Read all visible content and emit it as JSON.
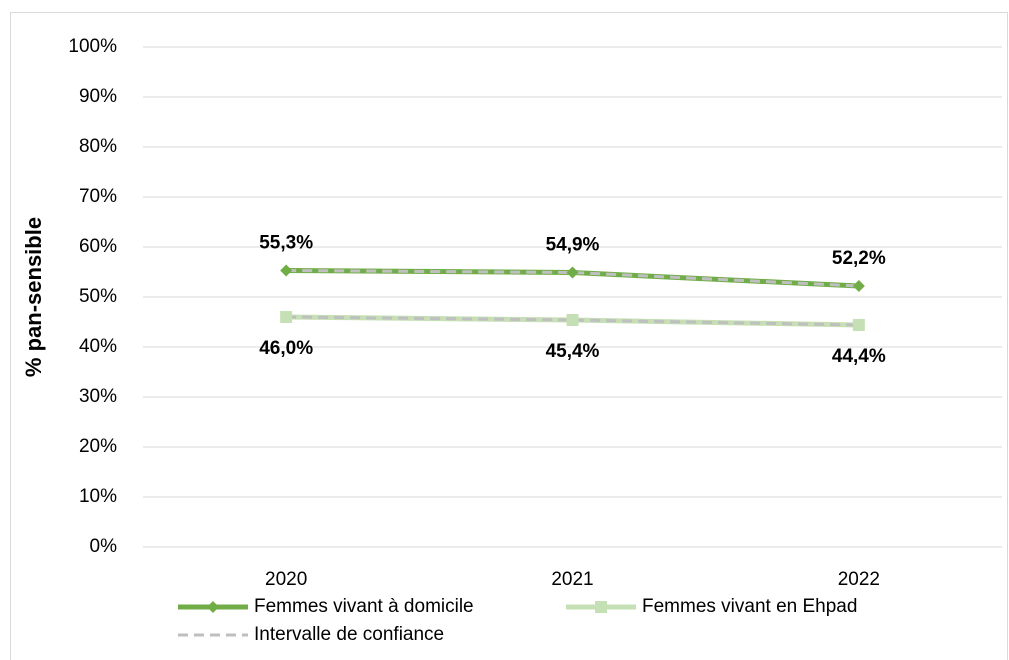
{
  "chart_data": {
    "type": "line",
    "y_label": "% pan-sensible",
    "categories": [
      "2020",
      "2021",
      "2022"
    ],
    "series": [
      {
        "name": "Femmes vivant à domicile",
        "color": "#70ad47",
        "marker": "diamond",
        "values": [
          55.3,
          54.9,
          52.2
        ],
        "value_labels": [
          "55,3%",
          "54,9%",
          "52,2%"
        ],
        "label_position": "above"
      },
      {
        "name": "Femmes vivant en Ehpad",
        "color": "#c5e0b4",
        "marker": "square",
        "values": [
          46.0,
          45.4,
          44.4
        ],
        "value_labels": [
          "46,0%",
          "45,4%",
          "44,4%"
        ],
        "label_position": "below"
      }
    ],
    "confidence_interval": {
      "name": "Intervalle de confiance",
      "color": "#bfbfbf",
      "dashed": true,
      "lines": [
        [
          55.3,
          54.9,
          52.2
        ],
        [
          46.0,
          45.4,
          44.4
        ]
      ]
    },
    "ylim": [
      0,
      100
    ],
    "yticks": [
      {
        "value": 0,
        "label": "0%"
      },
      {
        "value": 10,
        "label": "10%"
      },
      {
        "value": 20,
        "label": "20%"
      },
      {
        "value": 30,
        "label": "30%"
      },
      {
        "value": 40,
        "label": "40%"
      },
      {
        "value": 50,
        "label": "50%"
      },
      {
        "value": 60,
        "label": "60%"
      },
      {
        "value": 70,
        "label": "70%"
      },
      {
        "value": 80,
        "label": "80%"
      },
      {
        "value": 90,
        "label": "90%"
      },
      {
        "value": 100,
        "label": "100%"
      }
    ],
    "grid": true
  }
}
